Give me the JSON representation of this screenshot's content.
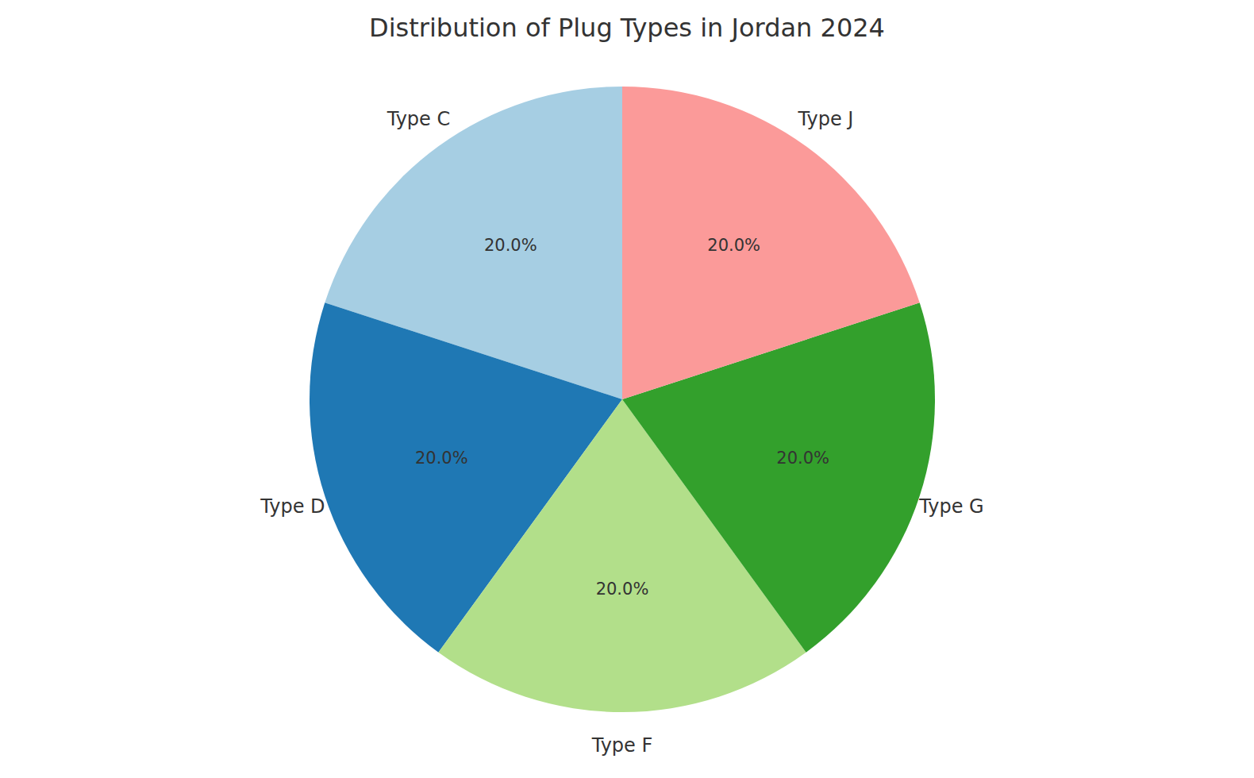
{
  "chart_data": {
    "type": "pie",
    "title": "Distribution of Plug Types in Jordan 2024",
    "categories": [
      "Type C",
      "Type D",
      "Type F",
      "Type G",
      "Type J"
    ],
    "values": [
      20,
      20,
      20,
      20,
      20
    ],
    "value_labels": [
      "20.0%",
      "20.0%",
      "20.0%",
      "20.0%",
      "20.0%"
    ],
    "colors": [
      "#a6cee3",
      "#1f78b4",
      "#b2df8a",
      "#33a02c",
      "#fb9a99"
    ],
    "data_labels": true
  }
}
